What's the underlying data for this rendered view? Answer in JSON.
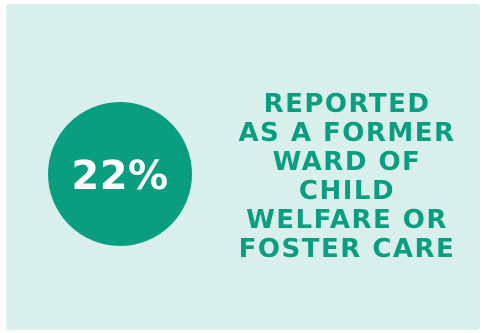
{
  "stat": {
    "value": "22%",
    "circle_color": "#0a9e80",
    "background_color": "#d9efec"
  },
  "caption": {
    "lines": [
      "REPORTED",
      "AS A FORMER",
      "WARD OF",
      "CHILD",
      "WELFARE OR",
      "FOSTER CARE"
    ]
  }
}
